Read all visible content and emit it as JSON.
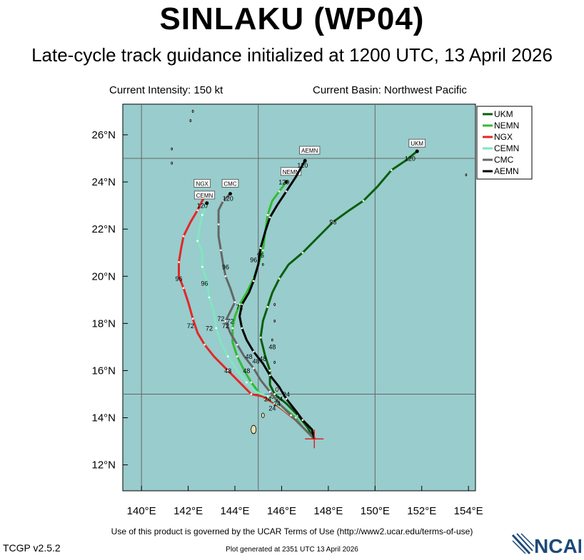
{
  "header": {
    "title": "SINLAKU (WP04)",
    "subtitle": "Late-cycle track guidance initialized at 1200 UTC, 13 April 2026",
    "current_intensity": "Current Intensity: 150 kt",
    "current_basin": "Current Basin: Northwest Pacific"
  },
  "footer": {
    "terms": "Use of this product is governed by the UCAR Terms of Use (http://www2.ucar.edu/terms-of-use)",
    "version": "TCGP v2.5.2",
    "generated": "Plot generated at 2351 UTC   13 April 2026",
    "logo_text": "NCAR"
  },
  "map": {
    "ocean_color": "#99cccc",
    "land_color": "#e6e0b0",
    "grid_color": "#666666",
    "lon_range": [
      139.2,
      154.3
    ],
    "lat_range": [
      10.9,
      27.3
    ],
    "lon_ticks": [
      140,
      142,
      144,
      146,
      148,
      150,
      152,
      154
    ],
    "lon_tick_labels": [
      "140°E",
      "142°E",
      "144°E",
      "146°E",
      "148°E",
      "150°E",
      "152°E",
      "154°E"
    ],
    "lat_ticks": [
      12,
      14,
      16,
      18,
      20,
      22,
      24,
      26
    ],
    "lat_tick_labels": [
      "12°N",
      "14°N",
      "16°N",
      "18°N",
      "20°N",
      "22°N",
      "24°N",
      "26°N"
    ],
    "grid_lons": [
      140,
      145,
      150
    ],
    "grid_lats": [
      15,
      25
    ],
    "initial_position": {
      "lon": 147.4,
      "lat": 13.1
    },
    "legend_position": "top-right",
    "models": [
      {
        "name": "UKM",
        "color": "#0b5e0b",
        "track": [
          [
            147.4,
            13.1
          ],
          [
            147.1,
            13.6
          ],
          [
            146.7,
            14.1
          ],
          [
            146.2,
            14.6
          ],
          [
            145.7,
            15.0
          ],
          [
            145.5,
            15.4
          ],
          [
            145.5,
            16.0
          ],
          [
            145.3,
            16.6
          ],
          [
            145.1,
            17.4
          ],
          [
            145.2,
            18.1
          ],
          [
            145.4,
            18.7
          ],
          [
            145.6,
            19.3
          ],
          [
            145.9,
            19.9
          ],
          [
            146.3,
            20.5
          ],
          [
            146.9,
            21.0
          ],
          [
            147.5,
            21.6
          ],
          [
            148.2,
            22.3
          ],
          [
            148.9,
            22.8
          ],
          [
            149.5,
            23.2
          ],
          [
            150.1,
            23.8
          ],
          [
            150.7,
            24.5
          ],
          [
            151.3,
            24.9
          ],
          [
            151.8,
            25.3
          ]
        ],
        "labels": [
          {
            "text": "96",
            "lon": 148.2,
            "lat": 22.2
          },
          {
            "text": "120",
            "lon": 151.5,
            "lat": 24.9
          }
        ],
        "tag": {
          "text": "UKM",
          "lon": 151.8,
          "lat": 25.6
        }
      },
      {
        "name": "NEMN",
        "color": "#33bb33",
        "track": [
          [
            147.4,
            13.1
          ],
          [
            146.9,
            13.6
          ],
          [
            146.6,
            14.0
          ],
          [
            146.0,
            14.5
          ],
          [
            145.3,
            14.8
          ],
          [
            145.0,
            15.1
          ],
          [
            144.7,
            15.5
          ],
          [
            144.4,
            16.0
          ],
          [
            144.1,
            16.6
          ],
          [
            143.9,
            17.2
          ],
          [
            143.9,
            17.8
          ],
          [
            144.0,
            18.3
          ],
          [
            144.2,
            18.8
          ],
          [
            144.5,
            19.3
          ],
          [
            144.8,
            19.9
          ],
          [
            145.0,
            20.5
          ],
          [
            145.2,
            21.1
          ],
          [
            145.3,
            21.9
          ],
          [
            145.4,
            22.6
          ],
          [
            145.6,
            23.2
          ],
          [
            145.9,
            23.6
          ],
          [
            146.2,
            24.0
          ]
        ],
        "labels": [
          {
            "text": "96",
            "lon": 144.8,
            "lat": 20.6
          },
          {
            "text": "120",
            "lon": 146.1,
            "lat": 23.9
          }
        ],
        "tag": {
          "text": "NEMN",
          "lon": 146.4,
          "lat": 24.4
        }
      },
      {
        "name": "NGX",
        "color": "#e02828",
        "track": [
          [
            147.4,
            13.1
          ],
          [
            147.0,
            13.5
          ],
          [
            146.6,
            13.9
          ],
          [
            146.1,
            14.3
          ],
          [
            145.7,
            14.6
          ],
          [
            145.2,
            14.9
          ],
          [
            144.7,
            15.0
          ],
          [
            144.2,
            15.5
          ],
          [
            143.7,
            16.0
          ],
          [
            143.1,
            16.6
          ],
          [
            142.7,
            17.1
          ],
          [
            142.4,
            17.6
          ],
          [
            142.2,
            18.2
          ],
          [
            142.0,
            18.9
          ],
          [
            141.8,
            19.5
          ],
          [
            141.6,
            20.0
          ],
          [
            141.6,
            20.6
          ],
          [
            141.7,
            21.2
          ],
          [
            141.8,
            21.7
          ],
          [
            142.1,
            22.3
          ],
          [
            142.4,
            22.8
          ],
          [
            142.6,
            23.2
          ],
          [
            142.8,
            23.5
          ]
        ],
        "labels": [
          {
            "text": "72",
            "lon": 142.1,
            "lat": 17.8
          },
          {
            "text": "96",
            "lon": 141.6,
            "lat": 19.8
          },
          {
            "text": "120",
            "lon": 142.8,
            "lat": 23.3
          }
        ],
        "tag": {
          "text": "NGX",
          "lon": 142.6,
          "lat": 23.9
        }
      },
      {
        "name": "CEMN",
        "color": "#80e6c0",
        "track": [
          [
            147.4,
            13.1
          ],
          [
            146.9,
            13.6
          ],
          [
            146.4,
            14.1
          ],
          [
            145.9,
            14.5
          ],
          [
            145.4,
            14.9
          ],
          [
            144.9,
            15.1
          ],
          [
            144.5,
            15.5
          ],
          [
            144.1,
            16.0
          ],
          [
            143.7,
            16.6
          ],
          [
            143.4,
            17.2
          ],
          [
            143.2,
            17.8
          ],
          [
            143.1,
            18.5
          ],
          [
            142.9,
            19.1
          ],
          [
            142.8,
            19.8
          ],
          [
            142.6,
            20.4
          ],
          [
            142.6,
            21.0
          ],
          [
            142.4,
            21.5
          ],
          [
            142.5,
            22.1
          ],
          [
            142.6,
            22.6
          ],
          [
            142.8,
            23.1
          ]
        ],
        "labels": [
          {
            "text": "72",
            "lon": 142.9,
            "lat": 17.7
          },
          {
            "text": "96",
            "lon": 142.7,
            "lat": 19.6
          },
          {
            "text": "120",
            "lon": 142.6,
            "lat": 22.9
          }
        ],
        "tag": {
          "text": "CEMN",
          "lon": 142.7,
          "lat": 23.4
        }
      },
      {
        "name": "CMC",
        "color": "#666666",
        "track": [
          [
            147.4,
            13.1
          ],
          [
            146.9,
            13.6
          ],
          [
            146.4,
            14.1
          ],
          [
            145.9,
            14.6
          ],
          [
            145.5,
            15.1
          ],
          [
            145.1,
            15.6
          ],
          [
            144.8,
            16.1
          ],
          [
            144.4,
            16.6
          ],
          [
            144.1,
            17.1
          ],
          [
            143.8,
            17.6
          ],
          [
            143.6,
            18.1
          ],
          [
            143.8,
            18.5
          ],
          [
            144.0,
            18.9
          ],
          [
            143.8,
            19.5
          ],
          [
            143.6,
            20.0
          ],
          [
            143.5,
            20.5
          ],
          [
            143.4,
            21.1
          ],
          [
            143.3,
            21.7
          ],
          [
            143.3,
            22.2
          ],
          [
            143.3,
            22.8
          ],
          [
            143.5,
            23.2
          ],
          [
            143.8,
            23.5
          ]
        ],
        "labels": [
          {
            "text": "72",
            "lon": 143.4,
            "lat": 18.1
          },
          {
            "text": "96",
            "lon": 143.6,
            "lat": 20.3
          },
          {
            "text": "120",
            "lon": 143.7,
            "lat": 23.2
          }
        ],
        "tag": {
          "text": "CMC",
          "lon": 143.8,
          "lat": 23.9
        }
      },
      {
        "name": "AEMN",
        "color": "#000000",
        "track": [
          [
            147.4,
            13.1
          ],
          [
            147.3,
            13.5
          ],
          [
            146.9,
            13.9
          ],
          [
            146.6,
            14.3
          ],
          [
            146.2,
            14.8
          ],
          [
            145.9,
            15.3
          ],
          [
            145.5,
            15.8
          ],
          [
            145.2,
            16.3
          ],
          [
            144.8,
            16.8
          ],
          [
            144.5,
            17.3
          ],
          [
            144.3,
            17.8
          ],
          [
            144.2,
            18.3
          ],
          [
            144.3,
            18.8
          ],
          [
            144.6,
            19.3
          ],
          [
            144.8,
            19.8
          ],
          [
            145.0,
            20.5
          ],
          [
            145.1,
            21.2
          ],
          [
            145.3,
            21.9
          ],
          [
            145.5,
            22.5
          ],
          [
            145.8,
            23.0
          ],
          [
            146.2,
            23.6
          ],
          [
            146.6,
            24.2
          ],
          [
            147.0,
            24.9
          ]
        ],
        "labels": [
          {
            "text": "72",
            "lon": 144.2,
            "lat": 18.6
          },
          {
            "text": "96",
            "lon": 145.1,
            "lat": 20.8
          },
          {
            "text": "120",
            "lon": 146.9,
            "lat": 24.6
          }
        ],
        "tag": {
          "text": "AEMN",
          "lon": 147.2,
          "lat": 25.3
        }
      }
    ],
    "hour_labels_near_center": [
      {
        "text": "24",
        "lon": 145.4,
        "lat": 14.7
      },
      {
        "text": "24",
        "lon": 145.8,
        "lat": 14.5
      },
      {
        "text": "24",
        "lon": 145.6,
        "lat": 14.3
      },
      {
        "text": "24",
        "lon": 145.9,
        "lat": 14.7
      },
      {
        "text": "24",
        "lon": 146.2,
        "lat": 14.9
      },
      {
        "text": "48",
        "lon": 144.6,
        "lat": 16.5
      },
      {
        "text": "48",
        "lon": 144.9,
        "lat": 16.3
      },
      {
        "text": "48",
        "lon": 145.2,
        "lat": 16.4
      },
      {
        "text": "48",
        "lon": 144.5,
        "lat": 15.9
      },
      {
        "text": "48",
        "lon": 143.7,
        "lat": 15.9
      },
      {
        "text": "48",
        "lon": 145.6,
        "lat": 16.9
      },
      {
        "text": "72",
        "lon": 143.6,
        "lat": 17.8
      },
      {
        "text": "72",
        "lon": 143.8,
        "lat": 18.0
      }
    ],
    "islands": [
      {
        "lon": 144.8,
        "lat": 13.5,
        "r": 0.18
      },
      {
        "lon": 145.2,
        "lat": 14.1,
        "r": 0.1
      },
      {
        "lon": 145.6,
        "lat": 14.9,
        "r": 0.08
      },
      {
        "lon": 145.8,
        "lat": 15.2,
        "r": 0.08
      },
      {
        "lon": 145.7,
        "lat": 16.35,
        "r": 0.05
      },
      {
        "lon": 145.6,
        "lat": 17.3,
        "r": 0.04
      },
      {
        "lon": 145.7,
        "lat": 18.1,
        "r": 0.04
      },
      {
        "lon": 145.7,
        "lat": 18.8,
        "r": 0.05
      },
      {
        "lon": 145.2,
        "lat": 20.5,
        "r": 0.04
      },
      {
        "lon": 141.3,
        "lat": 24.8,
        "r": 0.05
      },
      {
        "lon": 141.3,
        "lat": 25.4,
        "r": 0.04
      },
      {
        "lon": 142.1,
        "lat": 26.6,
        "r": 0.05
      },
      {
        "lon": 142.2,
        "lat": 27.0,
        "r": 0.05
      },
      {
        "lon": 153.9,
        "lat": 24.3,
        "r": 0.03
      }
    ]
  },
  "legend": {
    "entries": [
      {
        "label": "UKM",
        "color": "#0b5e0b"
      },
      {
        "label": "NEMN",
        "color": "#33bb33"
      },
      {
        "label": "NGX",
        "color": "#e02828"
      },
      {
        "label": "CEMN",
        "color": "#80e6c0"
      },
      {
        "label": "CMC",
        "color": "#666666"
      },
      {
        "label": "AEMN",
        "color": "#000000"
      }
    ]
  }
}
